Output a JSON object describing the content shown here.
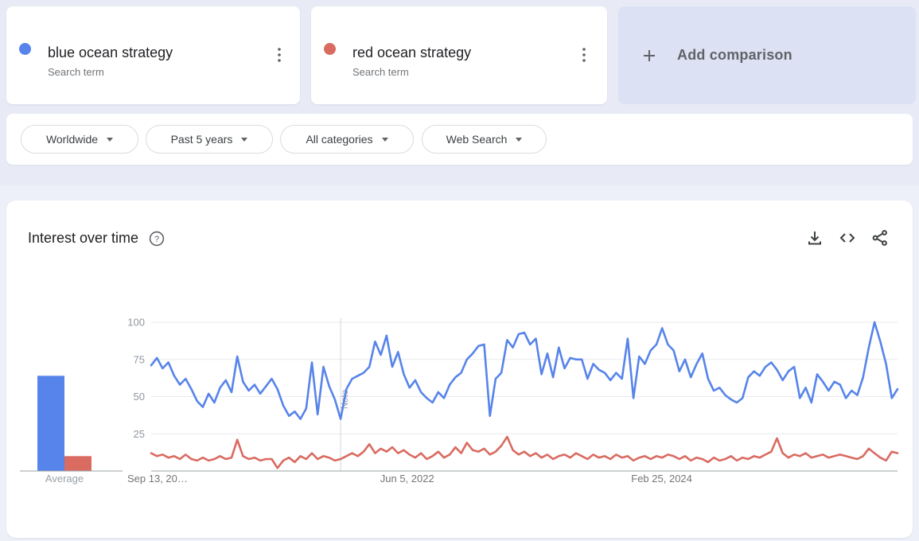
{
  "terms": [
    {
      "label": "blue ocean strategy",
      "sublabel": "Search term",
      "color": "#5784ea"
    },
    {
      "label": "red ocean strategy",
      "sublabel": "Search term",
      "color": "#d96b61"
    }
  ],
  "add_comparison": {
    "label": "Add comparison"
  },
  "filters": [
    {
      "label": "Worldwide"
    },
    {
      "label": "Past 5 years"
    },
    {
      "label": "All categories"
    },
    {
      "label": "Web Search"
    }
  ],
  "section": {
    "title": "Interest over time"
  },
  "icons": {
    "term_menu": "more-vertical-icon",
    "add": "plus-icon",
    "filter_arrow": "chevron-down-icon",
    "help": "help-icon",
    "download": "download-icon",
    "embed": "embed-code-icon",
    "share": "share-icon"
  },
  "chart_data": {
    "type": "line",
    "title": "Interest over time",
    "ylim": [
      0,
      100
    ],
    "grid": true,
    "y_axis": {
      "ticks": [
        100,
        75,
        50,
        25
      ]
    },
    "x_axis": {
      "ticks": [
        "Sep 13, 20…",
        "Jun 5, 2022",
        "Feb 25, 2024"
      ]
    },
    "note_marker": {
      "label": "Note",
      "index": 33
    },
    "averages": {
      "label": "Average",
      "values": [
        64,
        10
      ]
    },
    "series": [
      {
        "name": "blue ocean strategy",
        "color": "#5784ea",
        "values": [
          71,
          76,
          69,
          73,
          64,
          58,
          62,
          55,
          47,
          43,
          52,
          46,
          56,
          61,
          53,
          77,
          60,
          54,
          58,
          52,
          57,
          62,
          55,
          44,
          37,
          40,
          35,
          42,
          73,
          38,
          70,
          57,
          48,
          35,
          55,
          62,
          64,
          66,
          70,
          87,
          78,
          91,
          70,
          80,
          65,
          56,
          61,
          53,
          49,
          46,
          53,
          49,
          58,
          63,
          66,
          75,
          79,
          84,
          85,
          37,
          62,
          66,
          88,
          83,
          92,
          93,
          85,
          89,
          65,
          79,
          63,
          83,
          69,
          76,
          75,
          75,
          62,
          72,
          68,
          66,
          61,
          66,
          62,
          89,
          49,
          77,
          72,
          81,
          85,
          96,
          85,
          81,
          67,
          75,
          63,
          72,
          79,
          62,
          54,
          56,
          51,
          48,
          46,
          49,
          63,
          67,
          64,
          70,
          73,
          68,
          61,
          67,
          70,
          49,
          56,
          46,
          65,
          60,
          54,
          60,
          58,
          49,
          54,
          51,
          63,
          83,
          100,
          87,
          72,
          49,
          55
        ]
      },
      {
        "name": "red ocean strategy",
        "color": "#d96b61",
        "values": [
          12,
          10,
          11,
          9,
          10,
          8,
          11,
          8,
          7,
          9,
          7,
          8,
          10,
          8,
          9,
          21,
          10,
          8,
          9,
          7,
          8,
          8,
          2,
          7,
          9,
          6,
          10,
          8,
          12,
          8,
          10,
          9,
          7,
          8,
          10,
          12,
          10,
          13,
          18,
          12,
          15,
          13,
          16,
          12,
          14,
          11,
          9,
          12,
          8,
          10,
          13,
          9,
          11,
          16,
          12,
          19,
          14,
          13,
          15,
          11,
          13,
          17,
          23,
          14,
          11,
          13,
          10,
          12,
          9,
          11,
          8,
          10,
          11,
          9,
          12,
          10,
          8,
          11,
          9,
          10,
          8,
          11,
          9,
          10,
          7,
          9,
          10,
          8,
          10,
          9,
          11,
          10,
          8,
          10,
          7,
          9,
          8,
          6,
          9,
          7,
          8,
          10,
          7,
          9,
          8,
          10,
          9,
          11,
          13,
          22,
          12,
          9,
          11,
          10,
          12,
          9,
          10,
          11,
          9,
          10,
          11,
          10,
          9,
          8,
          10,
          15,
          12,
          9,
          7,
          13,
          12
        ]
      }
    ]
  }
}
